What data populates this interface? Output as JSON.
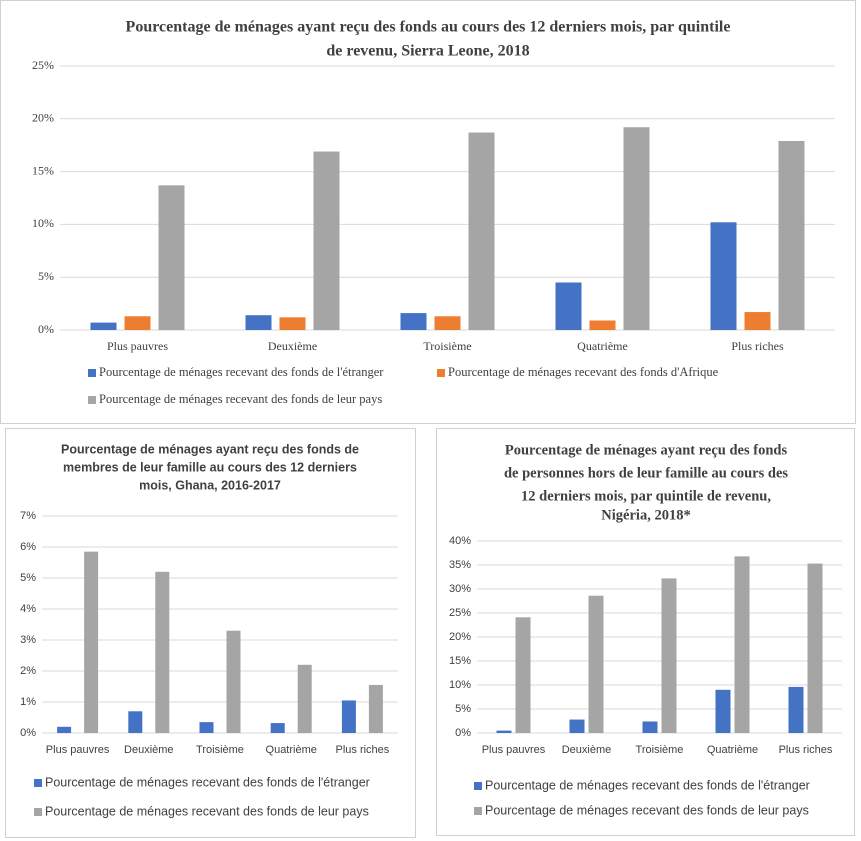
{
  "chart_data": [
    {
      "type": "bar",
      "title": [
        "Pourcentage de ménages ayant reçu des fonds au cours des 12 derniers mois, par quintile",
        "de revenu, Sierra Leone, 2018"
      ],
      "categories": [
        "Plus pauvres",
        "Deuxième",
        "Troisième",
        "Quatrième",
        "Plus riches"
      ],
      "series": [
        {
          "name": "Pourcentage de ménages recevant des fonds de l'étranger",
          "color": "#4472c4",
          "values": [
            0.7,
            1.4,
            1.6,
            4.5,
            10.2
          ]
        },
        {
          "name": "Pourcentage de ménages recevant des fonds d'Afrique",
          "color": "#ed7d31",
          "values": [
            1.3,
            1.2,
            1.3,
            0.9,
            1.7
          ]
        },
        {
          "name": "Pourcentage de ménages recevant des fonds de leur pays",
          "color": "#a5a5a5",
          "values": [
            13.7,
            16.9,
            18.7,
            19.2,
            17.9
          ]
        }
      ],
      "ylim": [
        0,
        25
      ],
      "yticks": [
        {
          "value": 0,
          "label": "0%"
        },
        {
          "value": 5,
          "label": "5%"
        },
        {
          "value": 10,
          "label": "10%"
        },
        {
          "value": 15,
          "label": "15%"
        },
        {
          "value": 20,
          "label": "20%"
        },
        {
          "value": 25,
          "label": "25%"
        }
      ],
      "grid": true
    },
    {
      "type": "bar",
      "title": [
        "Pourcentage de ménages ayant reçu des fonds de",
        "membres de leur famille au cours des 12 derniers",
        "mois, Ghana, 2016-2017"
      ],
      "categories": [
        "Plus pauvres",
        "Deuxième",
        "Troisième",
        "Quatrième",
        "Plus riches"
      ],
      "series": [
        {
          "name": "Pourcentage de ménages recevant des fonds de l'étranger",
          "color": "#4472c4",
          "values": [
            0.2,
            0.7,
            0.35,
            0.32,
            1.05
          ]
        },
        {
          "name": "Pourcentage de ménages recevant des fonds de leur pays",
          "color": "#a5a5a5",
          "values": [
            5.85,
            5.2,
            3.3,
            2.2,
            1.55
          ]
        }
      ],
      "ylim": [
        0,
        7
      ],
      "yticks": [
        {
          "value": 0,
          "label": "0%"
        },
        {
          "value": 1,
          "label": "1%"
        },
        {
          "value": 2,
          "label": "2%"
        },
        {
          "value": 3,
          "label": "3%"
        },
        {
          "value": 4,
          "label": "4%"
        },
        {
          "value": 5,
          "label": "5%"
        },
        {
          "value": 6,
          "label": "6%"
        },
        {
          "value": 7,
          "label": "7%"
        }
      ],
      "grid": true
    },
    {
      "type": "bar",
      "title": [
        "Pourcentage de ménages ayant reçu des fonds",
        "de personnes hors de leur famille au cours des",
        "12 derniers mois, par quintile de revenu,",
        "Nigéria, 2018*"
      ],
      "categories": [
        "Plus pauvres",
        "Deuxième",
        "Troisième",
        "Quatrième",
        "Plus riches"
      ],
      "series": [
        {
          "name": "Pourcentage de ménages recevant des fonds de l'étranger",
          "color": "#4472c4",
          "values": [
            0.5,
            2.8,
            2.4,
            9.0,
            9.6
          ]
        },
        {
          "name": "Pourcentage de ménages recevant des fonds de leur pays",
          "color": "#a5a5a5",
          "values": [
            24.1,
            28.6,
            32.2,
            36.8,
            35.3
          ]
        }
      ],
      "ylim": [
        0,
        40
      ],
      "yticks": [
        {
          "value": 0,
          "label": "0%"
        },
        {
          "value": 5,
          "label": "5%"
        },
        {
          "value": 10,
          "label": "10%"
        },
        {
          "value": 15,
          "label": "15%"
        },
        {
          "value": 20,
          "label": "20%"
        },
        {
          "value": 25,
          "label": "25%"
        },
        {
          "value": 30,
          "label": "30%"
        },
        {
          "value": 35,
          "label": "35%"
        },
        {
          "value": 40,
          "label": "40%"
        }
      ],
      "grid": true
    }
  ]
}
